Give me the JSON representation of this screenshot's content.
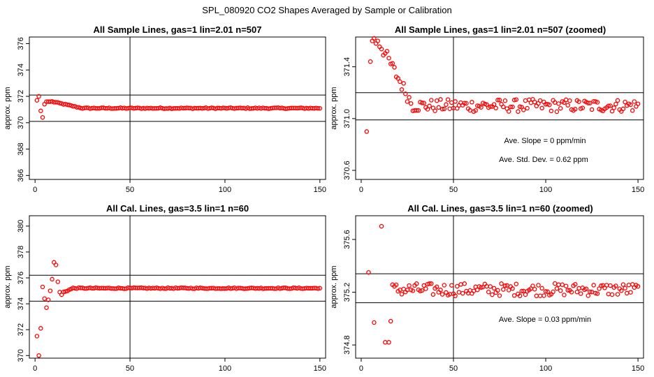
{
  "figure_title": "SPL_080920  CO2 Shapes Averaged by Sample or Calibration",
  "panels": [
    {
      "title": "All Sample Lines, gas=1 lin=2.01 n=507",
      "ylabel": "approx. ppm"
    },
    {
      "title": "All Sample Lines, gas=1 lin=2.01 n=507 (zoomed)",
      "ylabel": "approx. ppm",
      "annotation_1": "Ave. Slope = 0 ppm/min",
      "annotation_2": "Ave. Std. Dev. = 0.62 ppm"
    },
    {
      "title": "All Cal. Lines, gas=3.5 lin=1 n=60",
      "ylabel": "approx. ppm"
    },
    {
      "title": "All Cal. Lines, gas=3.5 lin=1 n=60 (zoomed)",
      "ylabel": "approx. ppm",
      "annotation_1": "Ave. Slope = 0.03 ppm/min"
    }
  ],
  "chart_data": [
    {
      "type": "scatter",
      "title": "All Sample Lines, gas=1 lin=2.01 n=507",
      "xlabel": "",
      "ylabel": "approx. ppm",
      "xlim": [
        -3,
        153
      ],
      "ylim": [
        365.7,
        376.5
      ],
      "x_ticks": [
        0,
        50,
        100,
        150
      ],
      "y_ticks": [
        366,
        368,
        370,
        372,
        374,
        376
      ],
      "vline_x": 50,
      "hlines_y": [
        372.1,
        370.1
      ],
      "marker_color": "#ff0000",
      "series_first_points": [
        [
          1,
          371.7
        ],
        [
          2,
          372.0
        ],
        [
          3,
          370.9
        ],
        [
          4,
          370.4
        ],
        [
          5,
          371.4
        ],
        [
          6,
          371.6
        ],
        [
          7,
          371.6
        ],
        [
          8,
          371.6
        ]
      ],
      "series_trend": {
        "x_start": 9,
        "x_end": 150,
        "start_value": 371.6,
        "plateau_value": 371.1,
        "settle_x": 25
      }
    },
    {
      "type": "scatter",
      "title": "All Sample Lines, gas=1 lin=2.01 n=507 (zoomed)",
      "xlabel": "",
      "ylabel": "approx. ppm",
      "xlim": [
        -3,
        153
      ],
      "ylim": [
        370.53,
        371.63
      ],
      "x_ticks": [
        0,
        50,
        100,
        150
      ],
      "y_ticks": [
        370.6,
        371.0,
        371.4
      ],
      "vline_x": 50,
      "hlines_y": [
        371.2,
        370.99
      ],
      "marker_color": "#ff0000",
      "series_first_points": [
        [
          3,
          370.9
        ],
        [
          5,
          371.44
        ],
        [
          6,
          371.6
        ],
        [
          7,
          371.62
        ],
        [
          8,
          371.58
        ],
        [
          9,
          371.6
        ]
      ],
      "series_trend": {
        "x_start": 10,
        "x_end": 150,
        "start_value": 371.58,
        "plateau_value": 371.1,
        "settle_x": 28
      },
      "annotations": [
        "Ave. Slope = 0 ppm/min",
        "Ave. Std. Dev. = 0.62 ppm"
      ]
    },
    {
      "type": "scatter",
      "title": "All Cal. Lines, gas=3.5 lin=1 n=60",
      "xlabel": "",
      "ylabel": "approx. ppm",
      "xlim": [
        -3,
        153
      ],
      "ylim": [
        369.8,
        380.8
      ],
      "x_ticks": [
        0,
        50,
        100,
        150
      ],
      "y_ticks": [
        370,
        372,
        374,
        376,
        378,
        380
      ],
      "vline_x": 50,
      "hlines_y": [
        376.2,
        374.2
      ],
      "marker_color": "#ff0000",
      "series_first_points": [
        [
          1,
          371.5
        ],
        [
          2,
          370.0
        ],
        [
          3,
          372.1
        ],
        [
          4,
          375.3
        ],
        [
          5,
          374.4
        ],
        [
          6,
          373.7
        ],
        [
          7,
          374.3
        ],
        [
          8,
          375.0
        ],
        [
          9,
          375.9
        ],
        [
          10,
          377.2
        ],
        [
          11,
          377.0
        ],
        [
          12,
          375.7
        ],
        [
          13,
          374.9
        ],
        [
          14,
          374.7
        ]
      ],
      "series_trend": {
        "x_start": 15,
        "x_end": 150,
        "start_value": 374.9,
        "plateau_value": 375.2,
        "settle_x": 20
      }
    },
    {
      "type": "scatter",
      "title": "All Cal. Lines, gas=3.5 lin=1 n=60 (zoomed)",
      "xlabel": "",
      "ylabel": "approx. ppm",
      "xlim": [
        -3,
        153
      ],
      "ylim": [
        374.7,
        375.78
      ],
      "x_ticks": [
        0,
        50,
        100,
        150
      ],
      "y_ticks": [
        374.8,
        375.2,
        375.6
      ],
      "vline_x": 50,
      "hlines_y": [
        375.34,
        375.12
      ],
      "marker_color": "#ff0000",
      "series_first_points": [
        [
          4,
          375.35
        ],
        [
          7,
          374.97
        ],
        [
          11,
          375.7
        ],
        [
          13,
          374.82
        ],
        [
          15,
          374.82
        ],
        [
          16,
          374.98
        ]
      ],
      "series_trend": {
        "x_start": 17,
        "x_end": 150,
        "start_value": 375.15,
        "plateau_value": 375.22,
        "settle_x": 17
      },
      "annotations": [
        "Ave. Slope = 0.03 ppm/min"
      ]
    }
  ]
}
